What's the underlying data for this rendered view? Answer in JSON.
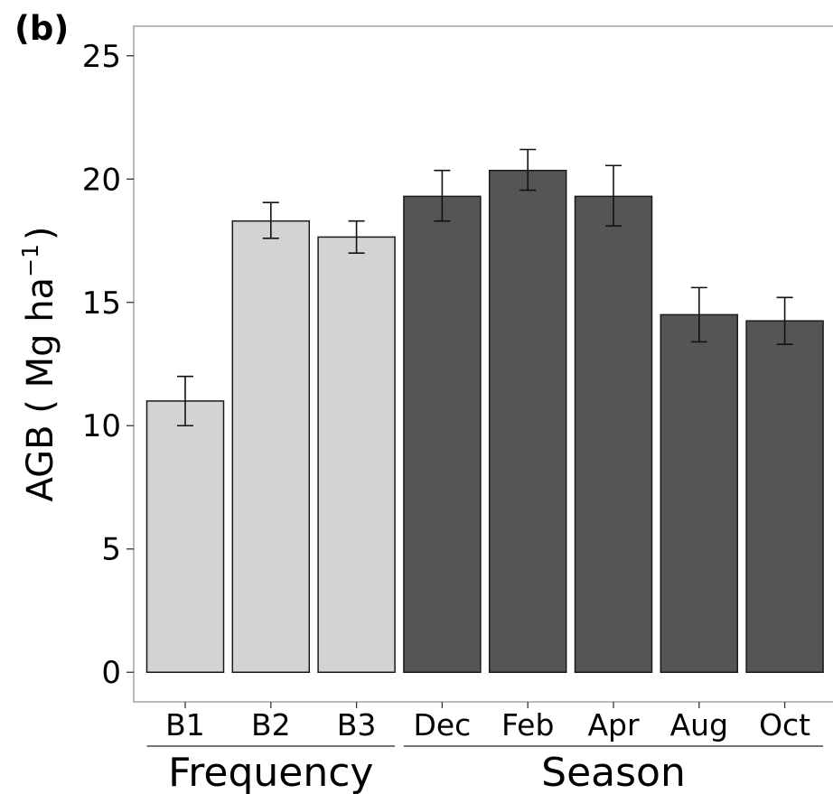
{
  "panel_label": "(b)",
  "chart_data": {
    "type": "bar",
    "categories": [
      "B1",
      "B2",
      "B3",
      "Dec",
      "Feb",
      "Apr",
      "Aug",
      "Oct"
    ],
    "values": [
      11.0,
      18.3,
      17.65,
      19.3,
      20.35,
      19.3,
      14.5,
      14.25
    ],
    "error_low": [
      10.0,
      17.6,
      17.0,
      18.3,
      19.55,
      18.1,
      13.4,
      13.3
    ],
    "error_high": [
      12.0,
      19.05,
      18.3,
      20.35,
      21.2,
      20.55,
      15.6,
      15.2
    ],
    "groups": [
      {
        "name": "Frequency",
        "categories": [
          "B1",
          "B2",
          "B3"
        ],
        "color": "#d3d3d3"
      },
      {
        "name": "Season",
        "categories": [
          "Dec",
          "Feb",
          "Apr",
          "Aug",
          "Oct"
        ],
        "color": "#555555"
      }
    ],
    "ylabel": "AGB ( Mg ha",
    "ylabel_superscript": "−1",
    "ylabel_close": ")",
    "yticks": [
      0,
      5,
      10,
      15,
      20,
      25
    ],
    "ylim": [
      -1.2,
      26.2
    ],
    "grid": false,
    "legend": "none"
  }
}
